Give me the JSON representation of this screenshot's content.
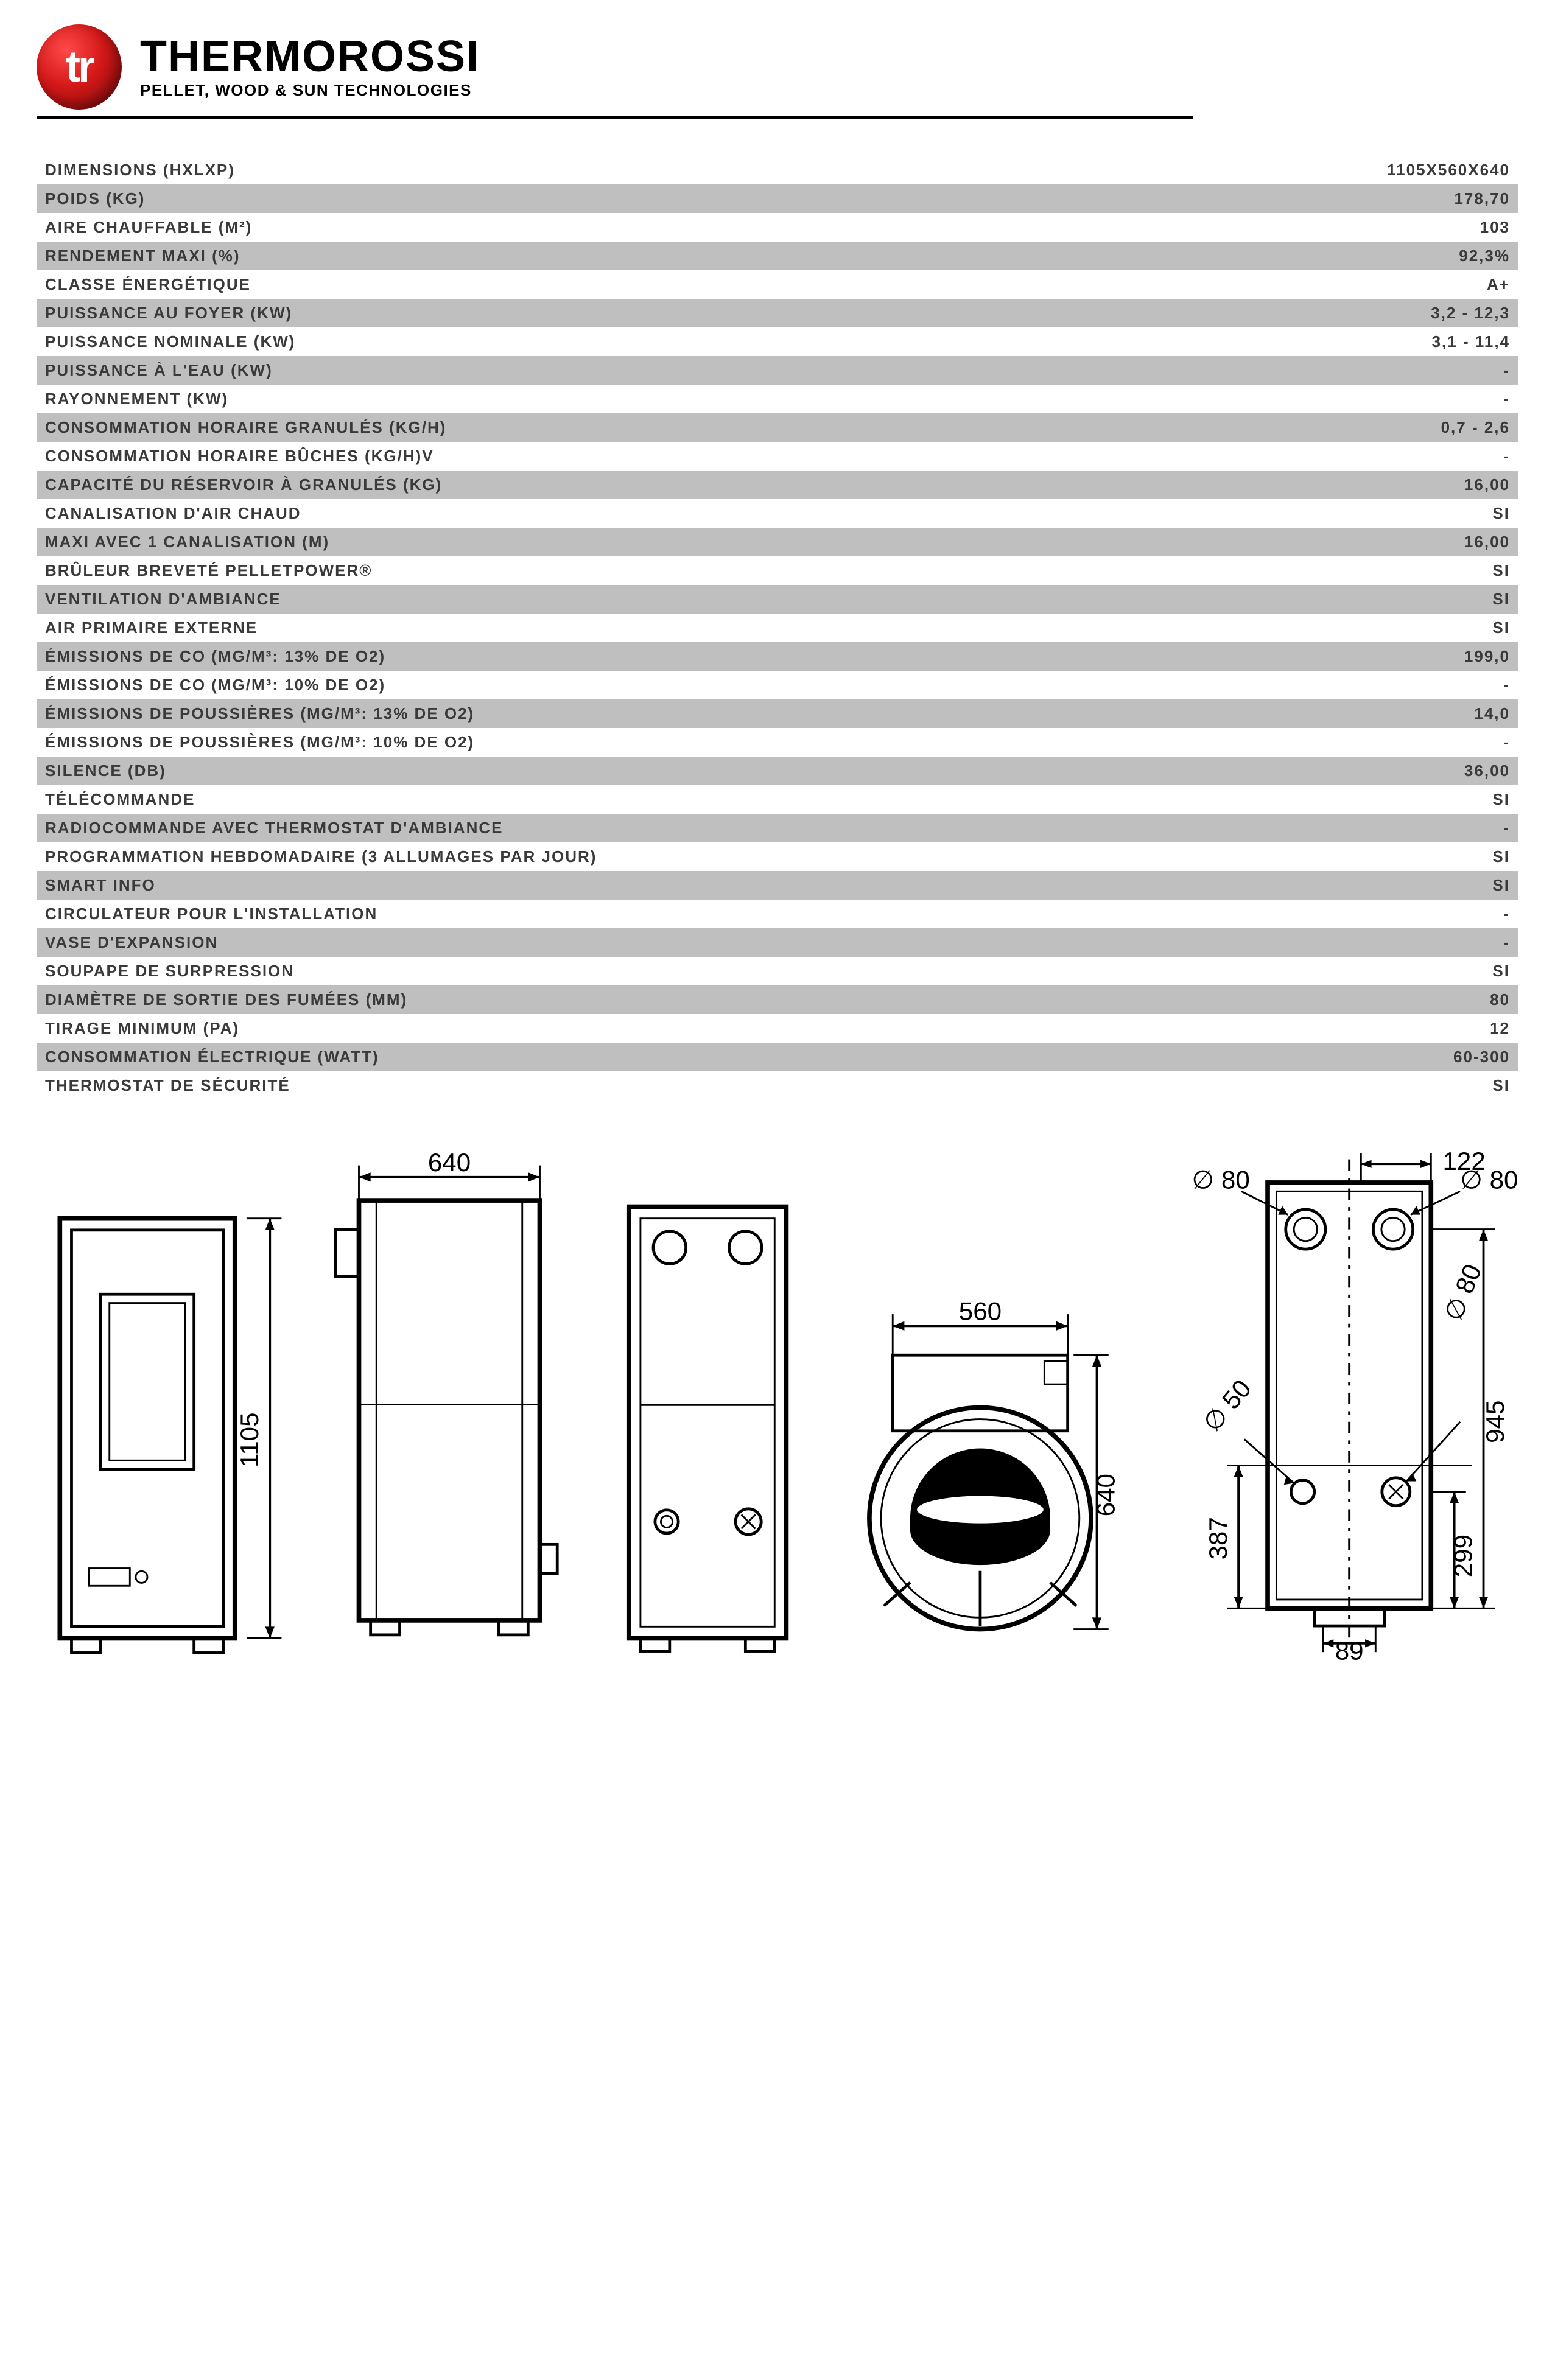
{
  "brand": {
    "logo_glyph": "tr",
    "name": "THERMOROSSI",
    "tagline": "PELLET, WOOD & SUN TECHNOLOGIES"
  },
  "spec_table": {
    "row_bg_odd": "#ffffff",
    "row_bg_even": "#bfbfbf",
    "text_color": "#3a3a3a",
    "font_size_pt": 20,
    "rows": [
      {
        "label": "DIMENSIONS (HXLXP)",
        "value": "1105X560X640"
      },
      {
        "label": "POIDS (KG)",
        "value": "178,70"
      },
      {
        "label": "AIRE CHAUFFABLE (M²)",
        "value": "103"
      },
      {
        "label": "RENDEMENT MAXI (%)",
        "value": "92,3%"
      },
      {
        "label": "CLASSE ÉNERGÉTIQUE",
        "value": "A+"
      },
      {
        "label": "PUISSANCE AU FOYER (KW)",
        "value": "3,2 - 12,3"
      },
      {
        "label": "PUISSANCE NOMINALE (KW)",
        "value": "3,1 - 11,4"
      },
      {
        "label": "PUISSANCE À L'EAU (KW)",
        "value": "-"
      },
      {
        "label": "RAYONNEMENT (KW)",
        "value": "-"
      },
      {
        "label": "CONSOMMATION HORAIRE GRANULÉS (KG/H)",
        "value": "0,7 - 2,6"
      },
      {
        "label": "CONSOMMATION HORAIRE BÛCHES (KG/H)V",
        "value": "-"
      },
      {
        "label": "CAPACITÉ DU RÉSERVOIR À GRANULÉS (KG)",
        "value": "16,00"
      },
      {
        "label": "CANALISATION D'AIR CHAUD",
        "value": "SI"
      },
      {
        "label": "MAXI AVEC 1 CANALISATION (M)",
        "value": "16,00"
      },
      {
        "label": "BRÛLEUR BREVETÉ PELLETPOWER®",
        "value": "SI"
      },
      {
        "label": "VENTILATION D'AMBIANCE",
        "value": "SI"
      },
      {
        "label": "AIR PRIMAIRE EXTERNE",
        "value": "SI"
      },
      {
        "label": "ÉMISSIONS DE CO (MG/M³: 13% DE O2)",
        "value": "199,0"
      },
      {
        "label": "ÉMISSIONS DE CO (MG/M³: 10% DE O2)",
        "value": "-"
      },
      {
        "label": "ÉMISSIONS DE POUSSIÈRES (MG/M³: 13% DE O2)",
        "value": "14,0"
      },
      {
        "label": "ÉMISSIONS DE POUSSIÈRES (MG/M³: 10% DE O2)",
        "value": "-"
      },
      {
        "label": "SILENCE (DB)",
        "value": "36,00"
      },
      {
        "label": "TÉLÉCOMMANDE",
        "value": "SI"
      },
      {
        "label": "RADIOCOMMANDE AVEC THERMOSTAT D'AMBIANCE",
        "value": "-"
      },
      {
        "label": "PROGRAMMATION HEBDOMADAIRE (3 ALLUMAGES PAR JOUR)",
        "value": "SI"
      },
      {
        "label": "SMART INFO",
        "value": "SI"
      },
      {
        "label": "CIRCULATEUR POUR L'INSTALLATION",
        "value": "-"
      },
      {
        "label": "VASE D'EXPANSION",
        "value": "-"
      },
      {
        "label": "SOUPAPE DE SURPRESSION",
        "value": "SI"
      },
      {
        "label": "DIAMÈTRE DE SORTIE DES FUMÉES (MM)",
        "value": "80"
      },
      {
        "label": "TIRAGE MINIMUM (PA)",
        "value": "12"
      },
      {
        "label": "CONSOMMATION ÉLECTRIQUE (WATT)",
        "value": "60-300"
      },
      {
        "label": "THERMOSTAT DE SÉCURITÉ",
        "value": "SI"
      }
    ]
  },
  "diagrams": {
    "front": {
      "height": "1105"
    },
    "side": {
      "depth": "640"
    },
    "top": {
      "width": "560",
      "depth": "640"
    },
    "rear": {
      "top_offset": "122",
      "d_left": "∅ 80",
      "d_right": "∅ 80",
      "d_small_left": "∅ 50",
      "d_small_right": "∅ 80",
      "h_mid": "945",
      "h_lower_left": "387",
      "h_lower_right": "299",
      "base": "89"
    },
    "stroke_color": "#000000",
    "line_width_thick": 8,
    "line_width_med": 5,
    "line_width_thin": 3,
    "dim_font_size": 44
  }
}
